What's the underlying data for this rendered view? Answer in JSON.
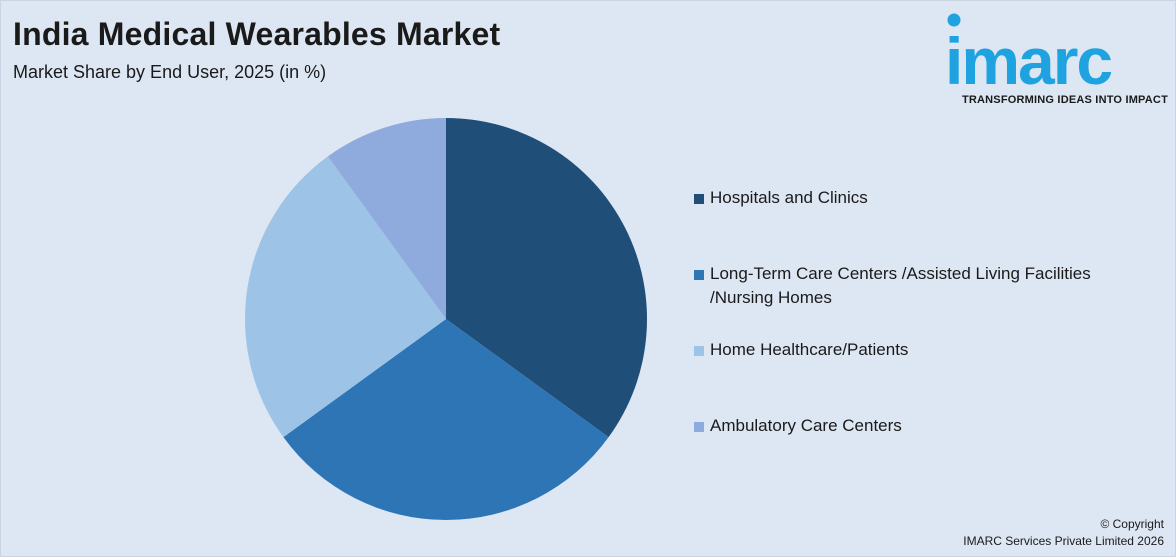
{
  "header": {
    "title": "India Medical Wearables Market",
    "subtitle": "Market Share by End User, 2025 (in %)"
  },
  "logo": {
    "wordmark": "imarc",
    "tagline": "TRANSFORMING IDEAS INTO IMPACT",
    "color": "#1fa3e0"
  },
  "chart_data": {
    "type": "pie",
    "title": "India Medical Wearables Market",
    "subtitle": "Market Share by End User, 2025 (in %)",
    "slices": [
      {
        "label": "Hospitals and Clinics",
        "value": 35,
        "color": "#1f4e79"
      },
      {
        "label": "Long-Term Care Centers /Assisted Living Facilities /Nursing Homes",
        "value": 30,
        "color": "#2e75b6"
      },
      {
        "label": "Home Healthcare/Patients",
        "value": 25,
        "color": "#9dc3e6"
      },
      {
        "label": "Ambulatory Care Centers",
        "value": 10,
        "color": "#8faadc"
      }
    ],
    "legend_position": "right"
  },
  "legend": {
    "items": [
      {
        "line1": "Hospitals and Clinics",
        "line2": ""
      },
      {
        "line1": "Long-Term Care Centers /Assisted Living Facilities",
        "line2": "/Nursing Homes"
      },
      {
        "line1": "Home Healthcare/Patients",
        "line2": ""
      },
      {
        "line1": "Ambulatory Care Centers",
        "line2": ""
      }
    ]
  },
  "footer": {
    "copyright_line1": "© Copyright",
    "copyright_line2": "IMARC Services Private Limited 2026"
  }
}
